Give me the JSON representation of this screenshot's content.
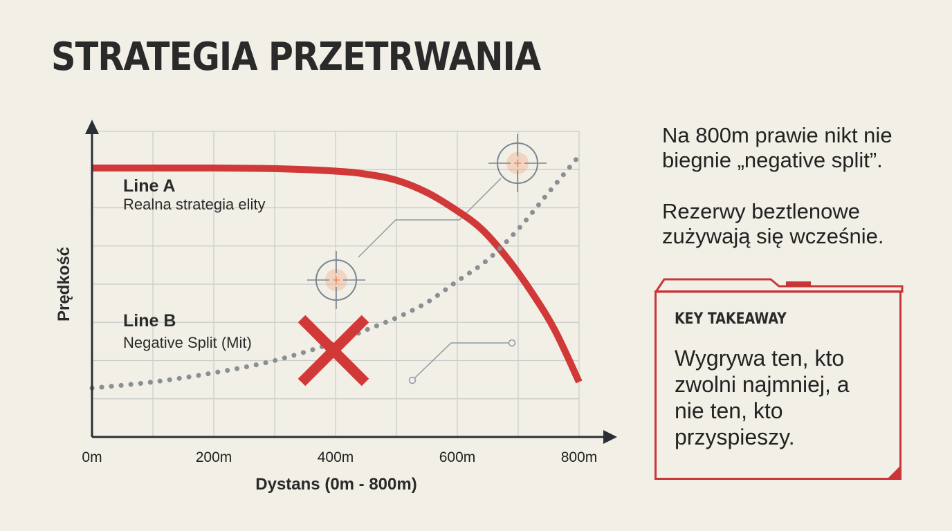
{
  "title": "STRATEGIA PRZETRWANIA",
  "notes": [
    "Na 800m prawie nikt nie biegnie „negative split”.",
    "Rezerwy beztlenowe zużywają się wcześnie."
  ],
  "takeaway": {
    "label": "KEY TAKEAWAY",
    "text": "Wygrywa ten, kto zwolni najmniej, a nie ten, kto przyspieszy."
  },
  "colors": {
    "line_a": "#d13838",
    "line_b": "#8a8f93",
    "cross": "#d13838",
    "grid": "#c9ccc9",
    "axis": "#2a2f35",
    "target": "#7a8791",
    "target_center": "#f3a47a"
  },
  "chart_data": {
    "type": "line",
    "xlabel": "Dystans (0m - 800m)",
    "ylabel": "Prędkość",
    "x_tick_labels": [
      "0m",
      "200m",
      "400m",
      "600m",
      "800m"
    ],
    "xlim": [
      0,
      800
    ],
    "ylim": [
      0,
      100
    ],
    "grid": true,
    "series": [
      {
        "name": "Line A",
        "description": "Realna strategia elity",
        "style": "solid",
        "x": [
          0,
          100,
          200,
          300,
          400,
          450,
          500,
          550,
          600,
          640,
          680,
          720,
          760,
          800
        ],
        "y": [
          88,
          88,
          88,
          87.8,
          87,
          86,
          84,
          80,
          74,
          68,
          59,
          48,
          35,
          18
        ]
      },
      {
        "name": "Line B",
        "description": "Negative Split (Mit)",
        "style": "dotted",
        "x": [
          0,
          100,
          200,
          300,
          400,
          450,
          500,
          550,
          600,
          650,
          700,
          750,
          800
        ],
        "y": [
          16,
          18,
          21,
          25,
          31,
          35,
          39,
          44,
          51,
          58,
          68,
          80,
          92
        ]
      }
    ]
  }
}
